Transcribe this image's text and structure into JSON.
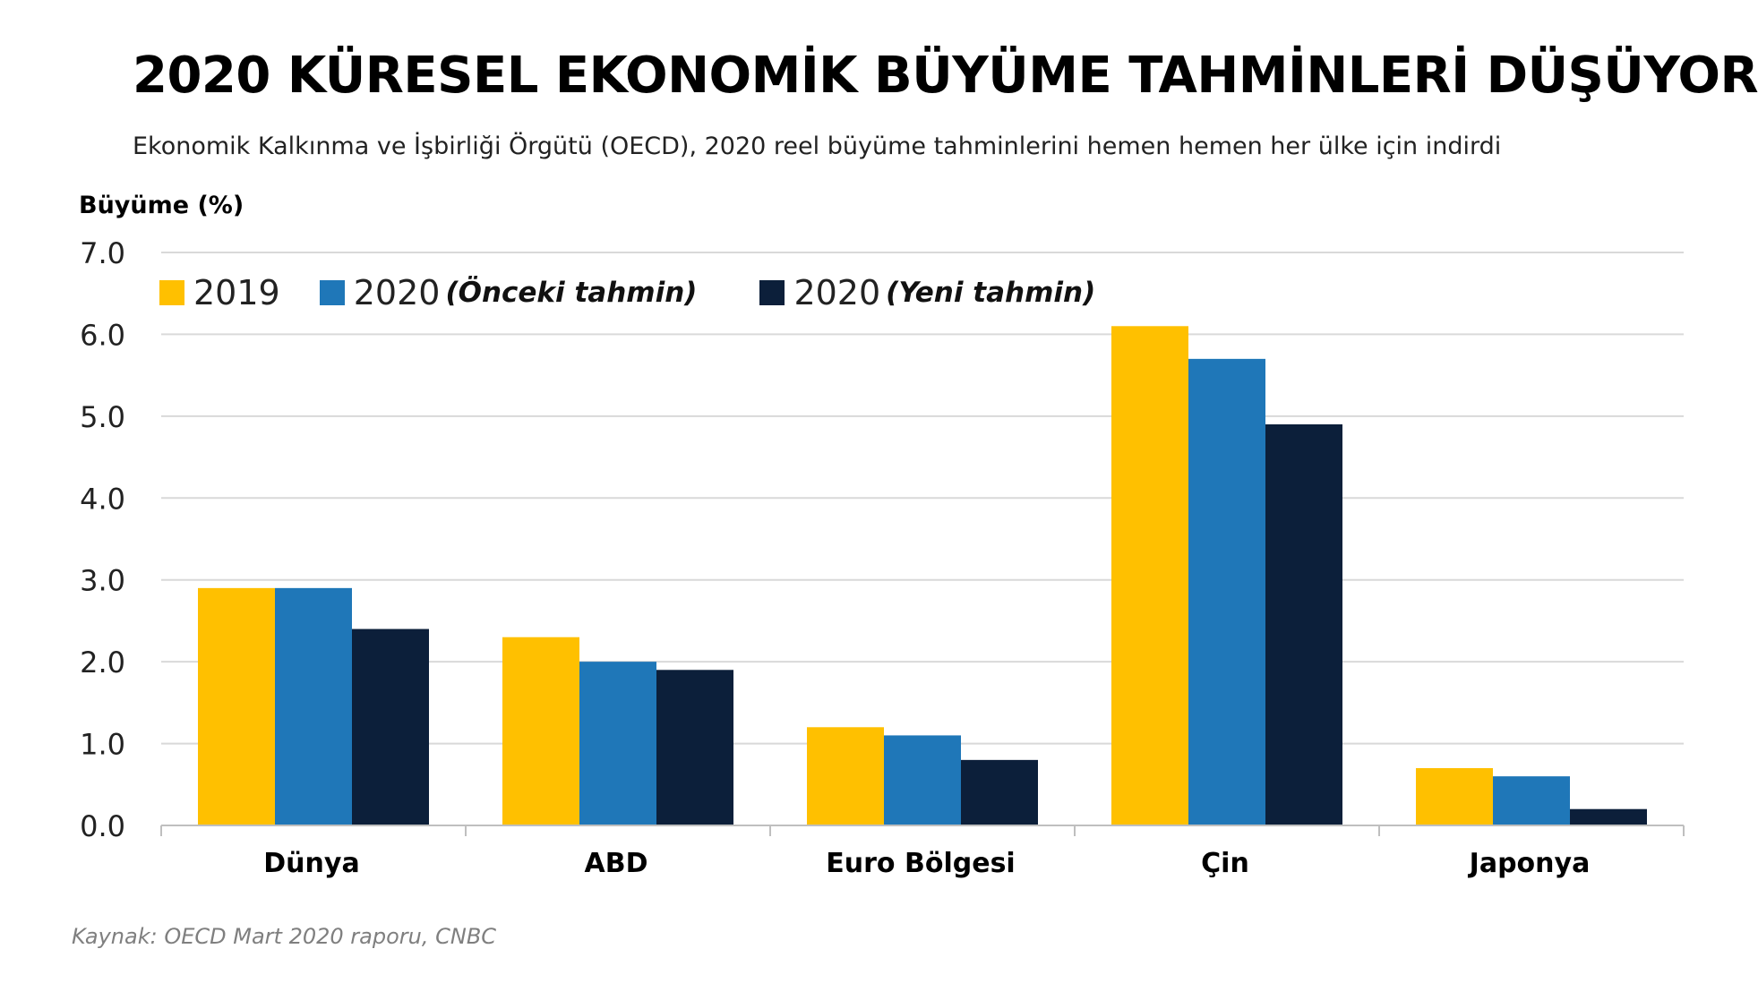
{
  "title": "2020 KÜRESEL EKONOMİK BÜYÜME TAHMİNLERİ DÜŞÜYOR",
  "subtitle": "Ekonomik Kalkınma ve İşbirliği Örgütü (OECD), 2020 reel büyüme tahminlerini hemen hemen her ülke için indirdi",
  "source": "Kaynak: OECD Mart 2020 raporu, CNBC",
  "chart_data": {
    "type": "bar",
    "ylabel": "Büyüme (%)",
    "ylim": [
      0,
      7
    ],
    "yticks": [
      "0.0",
      "1.0",
      "2.0",
      "3.0",
      "4.0",
      "5.0",
      "6.0",
      "7.0"
    ],
    "grid": true,
    "legend_position": "top-left",
    "categories": [
      "Dünya",
      "ABD",
      "Euro Bölgesi",
      "Çin",
      "Japonya"
    ],
    "series": [
      {
        "name": "2019",
        "note": "",
        "color": "#FFC000",
        "values": [
          2.9,
          2.3,
          1.2,
          6.1,
          0.7
        ]
      },
      {
        "name": "2020",
        "note": "(Önceki tahmin)",
        "color": "#1F77B8",
        "values": [
          2.9,
          2.0,
          1.1,
          5.7,
          0.6
        ]
      },
      {
        "name": "2020",
        "note": "(Yeni tahmin)",
        "color": "#0C1F3A",
        "values": [
          2.4,
          1.9,
          0.8,
          4.9,
          0.2
        ]
      }
    ]
  }
}
